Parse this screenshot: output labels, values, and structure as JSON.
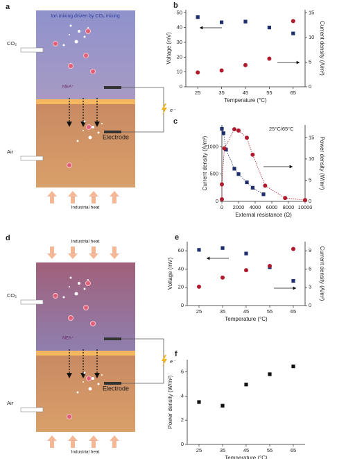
{
  "diagrams": [
    {
      "label": "a",
      "title": "Ion mixing driven by CO₂ mixing",
      "inlet": "CO₂",
      "ion": "MEA⁺",
      "electrode": "Electrode",
      "outlet": "Air",
      "electron": "e⁻",
      "heat_bottom": "Industrial heat"
    },
    {
      "label": "d",
      "heat_top": "Industrial heat",
      "inlet": "CO₂",
      "ion": "MEA⁺",
      "electrode": "Electrode",
      "outlet": "Air",
      "electron": "e⁻",
      "heat_bottom": "Industrial heat"
    }
  ],
  "chart_data": [
    {
      "type": "scatter",
      "label": "b",
      "xlabel": "Temperature (°C)",
      "ylabel": "Voltage (mV)",
      "y2label": "Current density (A/m²)",
      "x": [
        25,
        35,
        45,
        55,
        65
      ],
      "xlim": [
        20,
        70
      ],
      "xticks": [
        25,
        35,
        45,
        55,
        65
      ],
      "ylim": [
        0,
        52
      ],
      "yticks": [
        0,
        10,
        20,
        30,
        40,
        50
      ],
      "y2lim": [
        0,
        15.6
      ],
      "y2ticks": [
        0,
        5,
        10,
        15
      ],
      "series": [
        {
          "color": "#1f2f6e",
          "marker": "square",
          "values": [
            47,
            43.5,
            44,
            40,
            36
          ]
        },
        {
          "color": "#b01c2e",
          "marker": "circle",
          "axis": "y2",
          "values": [
            2.9,
            3.3,
            4.4,
            5.7,
            13.3
          ]
        }
      ]
    },
    {
      "type": "scatter",
      "label": "c",
      "xlabel": "External resistance (Ω)",
      "ylabel": "Current density (A/m²)",
      "y2label": "Power density (W/m²)",
      "annotation": "25°C/65°C",
      "xlim": [
        0,
        10000
      ],
      "xticks": [
        0,
        2000,
        4000,
        6000,
        8000,
        10000
      ],
      "ylim": [
        0,
        1400
      ],
      "yticks": [
        0,
        500,
        1000
      ],
      "y2lim": [
        0,
        18
      ],
      "y2ticks": [
        0,
        5,
        10,
        15
      ],
      "line": "dotted",
      "series": [
        {
          "color": "#1f2f6e",
          "marker": "square",
          "x": [
            0,
            200,
            500,
            1500,
            2000,
            3000,
            3700,
            5000
          ],
          "values": [
            1330,
            1250,
            950,
            600,
            500,
            350,
            250,
            130
          ]
        },
        {
          "color": "#b01c2e",
          "marker": "circle",
          "axis": "y2",
          "x": [
            0,
            0,
            300,
            1500,
            2000,
            3000,
            3700,
            5200,
            7600,
            10000
          ],
          "values": [
            0.5,
            4,
            12.5,
            17,
            16.7,
            15,
            11,
            3.7,
            0.8,
            0.3
          ]
        }
      ]
    },
    {
      "type": "scatter",
      "label": "e",
      "xlabel": "Temperature (°C)",
      "ylabel": "Voltage (mV)",
      "y2label": "Current density (A/m²)",
      "x": [
        25,
        35,
        45,
        55,
        65
      ],
      "xlim": [
        20,
        70
      ],
      "xticks": [
        25,
        35,
        45,
        55,
        65
      ],
      "ylim": [
        0,
        70
      ],
      "yticks": [
        0,
        20,
        40,
        60
      ],
      "y2lim": [
        0,
        10.5
      ],
      "y2ticks": [
        0,
        3,
        6,
        9
      ],
      "series": [
        {
          "color": "#1f2f6e",
          "marker": "square",
          "values": [
            61,
            63,
            57,
            42,
            27
          ]
        },
        {
          "color": "#b01c2e",
          "marker": "circle",
          "axis": "y2",
          "values": [
            3.1,
            4.6,
            5.8,
            6.5,
            9.3
          ]
        }
      ]
    },
    {
      "type": "scatter",
      "label": "f",
      "xlabel": "Temperature (°C)",
      "ylabel": "Power density (W/m²)",
      "x": [
        25,
        35,
        45,
        55,
        65
      ],
      "xlim": [
        20,
        70
      ],
      "xticks": [
        25,
        35,
        45,
        55,
        65
      ],
      "ylim": [
        0,
        7
      ],
      "yticks": [
        0,
        2,
        4,
        6
      ],
      "series": [
        {
          "color": "#111111",
          "marker": "square",
          "values": [
            3.5,
            3.2,
            4.95,
            5.8,
            6.45
          ]
        }
      ]
    }
  ]
}
